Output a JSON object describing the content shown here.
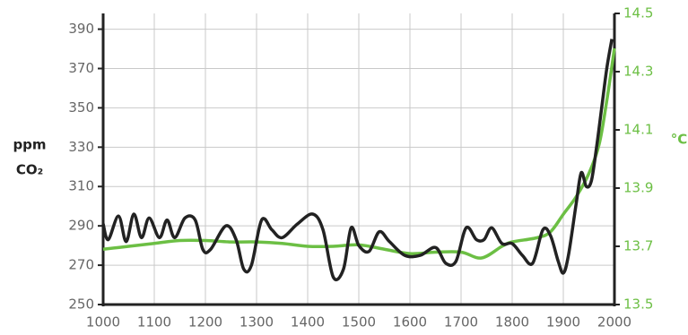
{
  "chart_data": {
    "type": "line",
    "ylabel": [
      "ppm",
      "CO₂"
    ],
    "y2label": "°C",
    "xlim": [
      1000,
      2000
    ],
    "xticks": [
      1000,
      1100,
      1200,
      1300,
      1400,
      1500,
      1600,
      1700,
      1800,
      1900,
      2000
    ],
    "ylim": [
      250,
      398
    ],
    "yticks": [
      250,
      270,
      290,
      310,
      330,
      350,
      370,
      390
    ],
    "y2lim": [
      13.5,
      14.5
    ],
    "y2ticks": [
      13.5,
      13.7,
      13.9,
      14.1,
      14.3,
      14.5
    ],
    "grid": true,
    "series": [
      {
        "color": "#6cbf44",
        "axis": "y2",
        "x": [
          1000,
          1050,
          1100,
          1150,
          1200,
          1250,
          1300,
          1350,
          1400,
          1450,
          1500,
          1550,
          1600,
          1650,
          1700,
          1740,
          1780,
          1800,
          1850,
          1875,
          1900,
          1925,
          1950,
          1970,
          1985,
          2000
        ],
        "values": [
          13.69,
          13.7,
          13.71,
          13.72,
          13.72,
          13.715,
          13.715,
          13.71,
          13.7,
          13.7,
          13.705,
          13.69,
          13.675,
          13.68,
          13.68,
          13.66,
          13.7,
          13.715,
          13.73,
          13.75,
          13.81,
          13.87,
          13.95,
          14.05,
          14.2,
          14.38
        ]
      },
      {
        "color": "#222222",
        "axis": "y",
        "x": [
          1000,
          1010,
          1030,
          1045,
          1060,
          1075,
          1090,
          1110,
          1125,
          1140,
          1160,
          1180,
          1195,
          1210,
          1240,
          1260,
          1275,
          1290,
          1310,
          1330,
          1350,
          1380,
          1410,
          1430,
          1450,
          1470,
          1485,
          1500,
          1520,
          1540,
          1560,
          1590,
          1620,
          1650,
          1670,
          1690,
          1710,
          1730,
          1745,
          1760,
          1780,
          1800,
          1820,
          1840,
          1860,
          1875,
          1890,
          1900,
          1910,
          1925,
          1935,
          1945,
          1955,
          1965,
          1975,
          1985,
          1995
        ],
        "values": [
          291,
          283,
          295,
          282,
          296,
          284,
          294,
          284,
          293,
          284,
          294,
          293,
          278,
          278,
          290,
          283,
          268,
          270,
          293,
          288,
          284,
          291,
          296,
          288,
          264,
          268,
          289,
          280,
          277,
          287,
          282,
          275,
          275,
          279,
          271,
          272,
          289,
          283,
          283,
          289,
          281,
          281,
          275,
          271,
          288,
          285,
          272,
          266,
          275,
          301,
          317,
          310,
          313,
          330,
          350,
          370,
          385
        ]
      }
    ]
  }
}
